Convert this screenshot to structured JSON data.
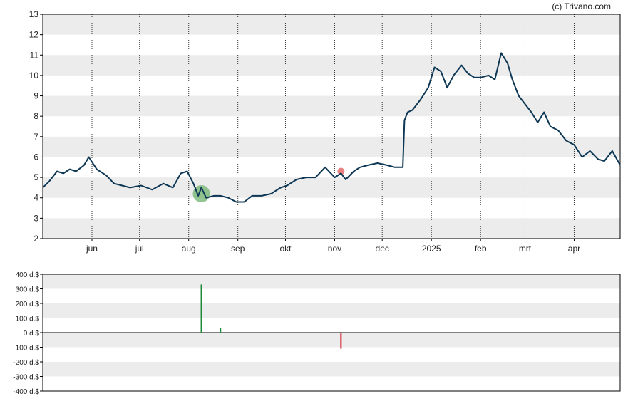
{
  "credit": "(c) Trivano.com",
  "colors": {
    "line": "#0d3754",
    "band": "#ececec",
    "frame": "#000000",
    "buy": "#1e8a3a",
    "sell": "#d2202a",
    "buy_marker": "#6fb36f",
    "sell_marker": "#e46a6a"
  },
  "chart_data": [
    {
      "type": "line",
      "title": "",
      "ylim": [
        2,
        13
      ],
      "y_ticks": [
        "2",
        "3",
        "4",
        "5",
        "6",
        "7",
        "8",
        "9",
        "10",
        "11",
        "12",
        "13"
      ],
      "x_ticks": [
        "jun",
        "jul",
        "aug",
        "sep",
        "okt",
        "nov",
        "dec",
        "2025",
        "feb",
        "mrt",
        "apr"
      ],
      "grid": "alternating horizontal bands, dotted vertical month lines",
      "series": [
        {
          "x": [
            "2024-05-01",
            "2024-05-05",
            "2024-05-10",
            "2024-05-14",
            "2024-05-18",
            "2024-05-22",
            "2024-05-27",
            "2024-05-30",
            "2024-06-04",
            "2024-06-10",
            "2024-06-15",
            "2024-06-20",
            "2024-06-25",
            "2024-07-02",
            "2024-07-09",
            "2024-07-16",
            "2024-07-22",
            "2024-07-27",
            "2024-07-31",
            "2024-08-04",
            "2024-08-07",
            "2024-08-09",
            "2024-08-12",
            "2024-08-17",
            "2024-08-21",
            "2024-08-26",
            "2024-08-31",
            "2024-09-05",
            "2024-09-10",
            "2024-09-16",
            "2024-09-22",
            "2024-09-28",
            "2024-10-02",
            "2024-10-08",
            "2024-10-14",
            "2024-10-20",
            "2024-10-26",
            "2024-11-01",
            "2024-11-05",
            "2024-11-08",
            "2024-11-13",
            "2024-11-17",
            "2024-11-22",
            "2024-11-28",
            "2024-12-04",
            "2024-12-09",
            "2024-12-14",
            "2024-12-15",
            "2024-12-17",
            "2024-12-20",
            "2024-12-25",
            "2024-12-30",
            "2025-01-03",
            "2025-01-07",
            "2025-01-11",
            "2025-01-15",
            "2025-01-20",
            "2025-01-24",
            "2025-01-28",
            "2025-02-01",
            "2025-02-06",
            "2025-02-10",
            "2025-02-14",
            "2025-02-18",
            "2025-02-21",
            "2025-02-25",
            "2025-03-01",
            "2025-03-05",
            "2025-03-09",
            "2025-03-13",
            "2025-03-17",
            "2025-03-22",
            "2025-03-27",
            "2025-04-01",
            "2025-04-06",
            "2025-04-11",
            "2025-04-16",
            "2025-04-20",
            "2025-04-25",
            "2025-04-30"
          ],
          "y": [
            4.5,
            4.8,
            5.3,
            5.2,
            5.4,
            5.3,
            5.6,
            6.0,
            5.4,
            5.1,
            4.7,
            4.6,
            4.5,
            4.6,
            4.4,
            4.7,
            4.5,
            5.2,
            5.3,
            4.7,
            4.1,
            4.5,
            4.0,
            4.1,
            4.1,
            4.0,
            3.8,
            3.8,
            4.1,
            4.1,
            4.2,
            4.5,
            4.6,
            4.9,
            5.0,
            5.0,
            5.5,
            5.0,
            5.2,
            4.9,
            5.3,
            5.5,
            5.6,
            5.7,
            5.6,
            5.5,
            5.5,
            7.8,
            8.2,
            8.3,
            8.8,
            9.4,
            10.4,
            10.2,
            9.4,
            10.0,
            10.5,
            10.1,
            9.9,
            9.9,
            10.0,
            9.8,
            11.1,
            10.6,
            9.8,
            9.0,
            8.6,
            8.2,
            7.7,
            8.2,
            7.5,
            7.3,
            6.8,
            6.6,
            6.0,
            6.3,
            5.9,
            5.8,
            6.3,
            5.6
          ]
        }
      ],
      "annotations": [
        {
          "type": "buy",
          "x": "2024-08-09",
          "y": 4.2
        },
        {
          "type": "sell",
          "x": "2024-11-05",
          "y": 5.3
        }
      ]
    },
    {
      "type": "bar",
      "title": "",
      "ylim": [
        -400,
        400
      ],
      "y_ticks": [
        "400 d.$",
        "300 d.$",
        "200 d.$",
        "100 d.$",
        "0 d.$",
        "-100 d.$",
        "-200 d.$",
        "-300 d.$",
        "-400 d.$"
      ],
      "y_tick_values": [
        400,
        300,
        200,
        100,
        0,
        -100,
        -200,
        -300,
        -400
      ],
      "bars": [
        {
          "x": "2024-08-09",
          "value": 330,
          "type": "buy"
        },
        {
          "x": "2024-08-21",
          "value": 30,
          "type": "buy"
        },
        {
          "x": "2024-11-05",
          "value": -110,
          "type": "sell"
        }
      ]
    }
  ]
}
